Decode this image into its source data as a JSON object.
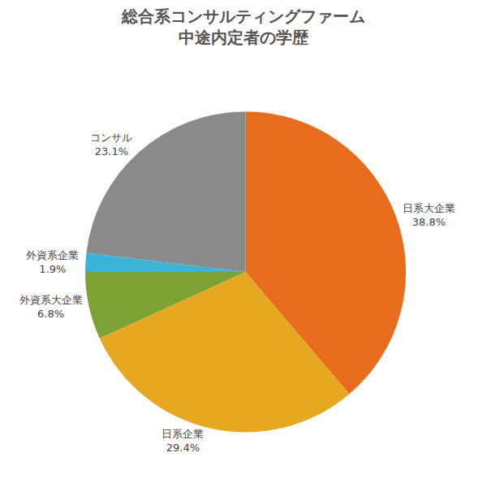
{
  "chart_data": {
    "type": "pie",
    "title": "総合系コンサルティングファーム\n中途内定者の学歴",
    "categories": [
      "日系大企業",
      "日系企業",
      "外資系大企業",
      "外資系企業",
      "コンサル"
    ],
    "values": [
      38.8,
      29.4,
      6.8,
      1.9,
      23.1
    ],
    "value_labels": [
      "38.8%",
      "29.4%",
      "6.8%",
      "1.9%",
      "23.1%"
    ],
    "colors": [
      "#e86c1e",
      "#e6a820",
      "#7ba232",
      "#3bb4d8",
      "#8a8a8a"
    ],
    "data_labels": true
  }
}
